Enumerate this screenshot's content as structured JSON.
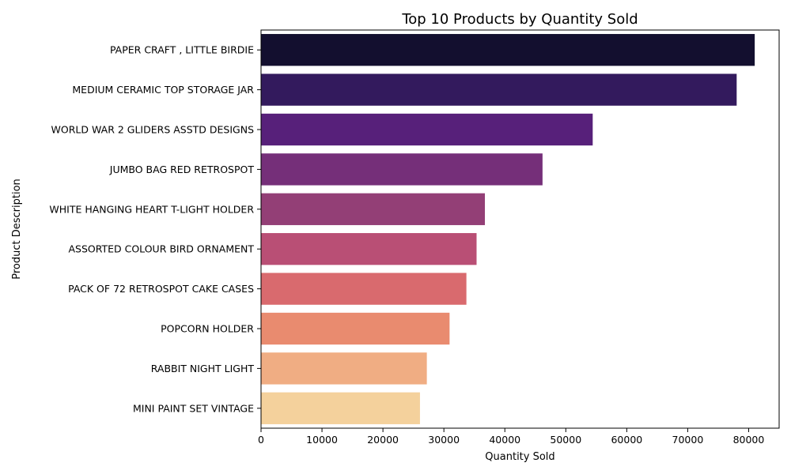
{
  "chart_data": {
    "type": "bar",
    "orientation": "horizontal",
    "title": "Top 10 Products by Quantity Sold",
    "xlabel": "Quantity Sold",
    "ylabel": "Product Description",
    "xlim": [
      0,
      85000
    ],
    "xticks": [
      "0",
      "10000",
      "20000",
      "30000",
      "40000",
      "50000",
      "60000",
      "70000",
      "80000"
    ],
    "grid": false,
    "categories": [
      "PAPER CRAFT , LITTLE BIRDIE",
      "MEDIUM CERAMIC TOP STORAGE JAR",
      "WORLD WAR 2 GLIDERS ASSTD DESIGNS",
      "JUMBO BAG RED RETROSPOT",
      "WHITE HANGING HEART T-LIGHT HOLDER",
      "ASSORTED COLOUR BIRD ORNAMENT",
      "PACK OF 72 RETROSPOT CAKE CASES",
      "POPCORN HOLDER",
      "RABBIT NIGHT LIGHT",
      "MINI PAINT SET VINTAGE "
    ],
    "values": [
      80995,
      78033,
      54415,
      46181,
      36725,
      35362,
      33693,
      30931,
      27202,
      26076
    ],
    "colors": [
      "#130f2f",
      "#331a5d",
      "#57207a",
      "#752f79",
      "#933f76",
      "#b94f75",
      "#d96a6e",
      "#e98b6f",
      "#f0ad83",
      "#f4d19c"
    ]
  }
}
